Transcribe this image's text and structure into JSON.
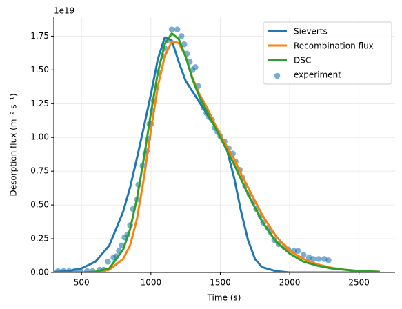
{
  "chart_data": {
    "type": "line",
    "xlabel": "Time (s)",
    "ylabel": "Desorption flux (m⁻² s⁻¹)",
    "y_offset_label": "1e19",
    "xlim": [
      300,
      2760
    ],
    "ylim": [
      0,
      1.89
    ],
    "xticks": [
      500,
      1000,
      1500,
      2000,
      2500
    ],
    "yticks": [
      {
        "value": 0,
        "label": "0.00"
      },
      {
        "value": 0.25,
        "label": "0.25"
      },
      {
        "value": 0.5,
        "label": "0.50"
      },
      {
        "value": 0.75,
        "label": "0.75"
      },
      {
        "value": 1,
        "label": "1.00"
      },
      {
        "value": 1.25,
        "label": "1.25"
      },
      {
        "value": 1.5,
        "label": "1.50"
      },
      {
        "value": 1.75,
        "label": "1.75"
      }
    ],
    "grid": true,
    "legend": "upper right",
    "x": [
      300,
      400,
      500,
      600,
      700,
      800,
      850,
      900,
      950,
      1000,
      1050,
      1100,
      1150,
      1200,
      1250,
      1300,
      1350,
      1400,
      1450,
      1500,
      1550,
      1600,
      1650,
      1700,
      1750,
      1800,
      1900,
      2000,
      2100,
      2200,
      2300,
      2400,
      2500,
      2650
    ],
    "series": [
      {
        "name": "Sieverts",
        "type": "line",
        "color": "#1f77b4",
        "values": [
          0.003,
          0.01,
          0.03,
          0.08,
          0.2,
          0.45,
          0.63,
          0.85,
          1.08,
          1.32,
          1.58,
          1.74,
          1.72,
          1.56,
          1.42,
          1.34,
          1.26,
          1.18,
          1.1,
          1.02,
          0.9,
          0.7,
          0.45,
          0.24,
          0.1,
          0.04,
          0.01,
          0,
          0,
          0,
          0,
          0,
          0,
          0
        ]
      },
      {
        "name": "Recombination flux",
        "type": "line",
        "color": "#ff7f0e",
        "values": [
          0,
          0,
          0,
          0.003,
          0.02,
          0.1,
          0.2,
          0.4,
          0.7,
          1.05,
          1.38,
          1.6,
          1.71,
          1.7,
          1.6,
          1.44,
          1.32,
          1.23,
          1.12,
          1.02,
          0.93,
          0.84,
          0.73,
          0.63,
          0.53,
          0.43,
          0.27,
          0.16,
          0.1,
          0.06,
          0.035,
          0.02,
          0.01,
          0.005
        ]
      },
      {
        "name": "DSC",
        "type": "line",
        "color": "#2ca02c",
        "values": [
          0,
          0,
          0,
          0.005,
          0.03,
          0.17,
          0.32,
          0.55,
          0.85,
          1.18,
          1.48,
          1.69,
          1.77,
          1.73,
          1.6,
          1.43,
          1.3,
          1.2,
          1.1,
          1.0,
          0.9,
          0.8,
          0.69,
          0.58,
          0.48,
          0.38,
          0.23,
          0.14,
          0.08,
          0.05,
          0.03,
          0.02,
          0.01,
          0.005
        ]
      },
      {
        "name": "experiment",
        "type": "scatter",
        "color": "#1f77b4",
        "x": [
          330,
          370,
          410,
          450,
          490,
          540,
          580,
          630,
          660,
          690,
          730,
          750,
          770,
          790,
          810,
          830,
          850,
          870,
          900,
          910,
          940,
          960,
          970,
          980,
          990,
          1000,
          1010,
          1020,
          1040,
          1060,
          1090,
          1100,
          1120,
          1150,
          1190,
          1220,
          1240,
          1260,
          1280,
          1300,
          1320,
          1340,
          1360,
          1380,
          1400,
          1420,
          1440,
          1460,
          1480,
          1500,
          1530,
          1560,
          1590,
          1610,
          1640,
          1660,
          1680,
          1710,
          1740,
          1760,
          1790,
          1810,
          1840,
          1860,
          1890,
          1920,
          1960,
          1990,
          2030,
          2060,
          2100,
          2140,
          2170,
          2210,
          2250,
          2280
        ],
        "values": [
          0.01,
          0.01,
          0.01,
          0.01,
          0.01,
          0.01,
          0.01,
          0.02,
          0.02,
          0.08,
          0.11,
          0.12,
          0.16,
          0.2,
          0.26,
          0.28,
          0.35,
          0.47,
          0.54,
          0.65,
          0.79,
          0.88,
          0.9,
          0.99,
          1.1,
          1.1,
          1.2,
          1.27,
          1.37,
          1.48,
          1.6,
          1.66,
          1.72,
          1.8,
          1.8,
          1.75,
          1.69,
          1.62,
          1.56,
          1.5,
          1.52,
          1.38,
          1.27,
          1.22,
          1.18,
          1.15,
          1.13,
          1.07,
          1.04,
          1.01,
          0.97,
          0.92,
          0.88,
          0.82,
          0.76,
          0.7,
          0.64,
          0.58,
          0.52,
          0.47,
          0.42,
          0.37,
          0.33,
          0.3,
          0.24,
          0.21,
          0.19,
          0.17,
          0.16,
          0.16,
          0.13,
          0.11,
          0.1,
          0.1,
          0.1,
          0.09
        ]
      }
    ]
  }
}
